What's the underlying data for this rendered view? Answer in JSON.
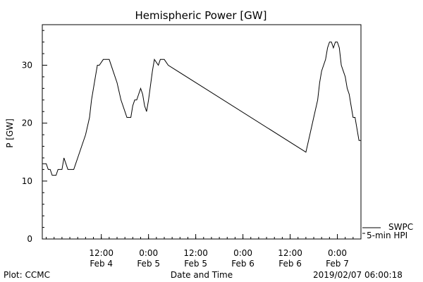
{
  "chart_data": {
    "type": "line",
    "title": "Hemispheric Power [GW]",
    "xlabel": "Date and Time",
    "ylabel": "P [GW]",
    "ylim": [
      0,
      37
    ],
    "xlim": [
      "2019-02-03T21:00",
      "2019-02-07T06:00"
    ],
    "yticks": [
      0,
      10,
      20,
      30
    ],
    "xticks": [
      {
        "time": "2019-02-04T12:00",
        "line1": "12:00",
        "line2": "Feb 4"
      },
      {
        "time": "2019-02-05T00:00",
        "line1": "0:00",
        "line2": "Feb 5"
      },
      {
        "time": "2019-02-05T12:00",
        "line1": "12:00",
        "line2": "Feb 5"
      },
      {
        "time": "2019-02-06T00:00",
        "line1": "0:00",
        "line2": "Feb 6"
      },
      {
        "time": "2019-02-06T12:00",
        "line1": "12:00",
        "line2": "Feb 6"
      },
      {
        "time": "2019-02-07T00:00",
        "line1": "0:00",
        "line2": "Feb 7"
      }
    ],
    "series": [
      {
        "legend": [
          "SWPC",
          "5-min HPI"
        ],
        "points": [
          [
            "2019-02-03T21:00",
            13
          ],
          [
            "2019-02-03T22:00",
            13
          ],
          [
            "2019-02-03T22:30",
            12
          ],
          [
            "2019-02-03T23:00",
            12
          ],
          [
            "2019-02-03T23:30",
            11
          ],
          [
            "2019-02-04T00:30",
            11
          ],
          [
            "2019-02-04T01:00",
            12
          ],
          [
            "2019-02-04T02:00",
            12
          ],
          [
            "2019-02-04T02:30",
            14
          ],
          [
            "2019-02-04T03:00",
            13
          ],
          [
            "2019-02-04T03:30",
            12
          ],
          [
            "2019-02-04T05:00",
            12
          ],
          [
            "2019-02-04T05:30",
            13
          ],
          [
            "2019-02-04T06:00",
            14
          ],
          [
            "2019-02-04T07:00",
            16
          ],
          [
            "2019-02-04T08:00",
            18
          ],
          [
            "2019-02-04T09:00",
            21
          ],
          [
            "2019-02-04T09:30",
            24
          ],
          [
            "2019-02-04T10:30",
            28
          ],
          [
            "2019-02-04T11:00",
            30
          ],
          [
            "2019-02-04T11:30",
            30
          ],
          [
            "2019-02-04T12:30",
            31
          ],
          [
            "2019-02-04T14:00",
            31
          ],
          [
            "2019-02-04T15:00",
            29
          ],
          [
            "2019-02-04T16:00",
            27
          ],
          [
            "2019-02-04T17:00",
            24
          ],
          [
            "2019-02-04T18:00",
            22
          ],
          [
            "2019-02-04T18:30",
            21
          ],
          [
            "2019-02-04T19:30",
            21
          ],
          [
            "2019-02-04T20:00",
            23
          ],
          [
            "2019-02-04T20:30",
            24
          ],
          [
            "2019-02-04T21:00",
            24
          ],
          [
            "2019-02-04T21:30",
            25
          ],
          [
            "2019-02-04T22:00",
            26
          ],
          [
            "2019-02-04T22:30",
            25
          ],
          [
            "2019-02-04T23:00",
            23
          ],
          [
            "2019-02-04T23:30",
            22
          ],
          [
            "2019-02-05T00:00",
            24
          ],
          [
            "2019-02-05T01:00",
            29
          ],
          [
            "2019-02-05T01:30",
            31
          ],
          [
            "2019-02-05T02:30",
            30
          ],
          [
            "2019-02-05T03:00",
            31
          ],
          [
            "2019-02-05T04:00",
            31
          ],
          [
            "2019-02-05T05:00",
            30
          ],
          [
            "2019-02-06T16:00",
            15
          ],
          [
            "2019-02-06T17:00",
            18
          ],
          [
            "2019-02-06T18:00",
            21
          ],
          [
            "2019-02-06T19:00",
            24
          ],
          [
            "2019-02-06T19:30",
            27
          ],
          [
            "2019-02-06T20:00",
            29
          ],
          [
            "2019-02-06T20:30",
            30
          ],
          [
            "2019-02-06T21:00",
            31
          ],
          [
            "2019-02-06T21:30",
            33
          ],
          [
            "2019-02-06T22:00",
            34
          ],
          [
            "2019-02-06T22:30",
            34
          ],
          [
            "2019-02-06T23:00",
            33
          ],
          [
            "2019-02-06T23:30",
            34
          ],
          [
            "2019-02-07T00:00",
            34
          ],
          [
            "2019-02-07T00:30",
            33
          ],
          [
            "2019-02-07T01:00",
            30
          ],
          [
            "2019-02-07T01:30",
            29
          ],
          [
            "2019-02-07T02:00",
            28
          ],
          [
            "2019-02-07T02:30",
            26
          ],
          [
            "2019-02-07T03:00",
            25
          ],
          [
            "2019-02-07T03:30",
            23
          ],
          [
            "2019-02-07T04:00",
            21
          ],
          [
            "2019-02-07T04:30",
            21
          ],
          [
            "2019-02-07T05:00",
            19
          ],
          [
            "2019-02-07T05:30",
            17
          ],
          [
            "2019-02-07T06:00",
            17
          ]
        ]
      }
    ]
  },
  "footer": {
    "left": "Plot: CCMC",
    "right": "2019/02/07 06:00:18"
  }
}
